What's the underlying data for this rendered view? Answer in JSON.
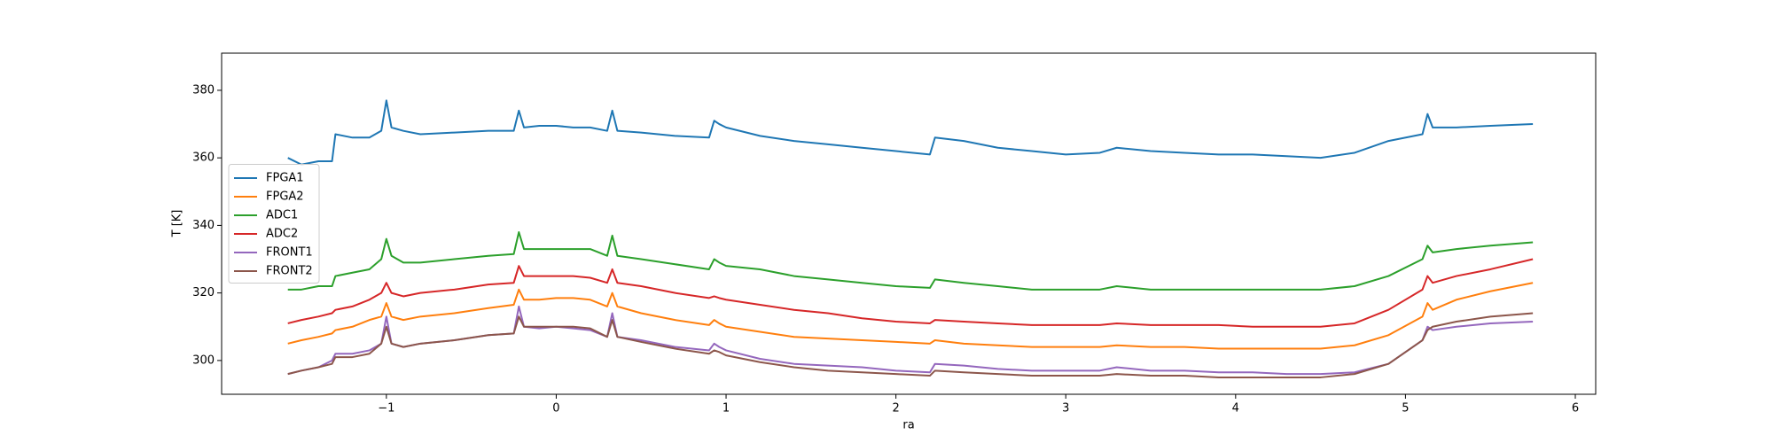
{
  "chart_data": {
    "type": "line",
    "x_label": "ra",
    "y_label": "T [K]",
    "x": [
      -1.58,
      -1.5,
      -1.4,
      -1.32,
      -1.3,
      -1.2,
      -1.1,
      -1.03,
      -1.0,
      -0.97,
      -0.9,
      -0.8,
      -0.6,
      -0.4,
      -0.25,
      -0.22,
      -0.19,
      -0.1,
      0,
      0.1,
      0.2,
      0.3,
      0.33,
      0.36,
      0.5,
      0.7,
      0.9,
      0.93,
      0.96,
      1.0,
      1.2,
      1.4,
      1.6,
      1.8,
      2.0,
      2.2,
      2.23,
      2.4,
      2.6,
      2.8,
      3.0,
      3.2,
      3.3,
      3.5,
      3.7,
      3.9,
      4.1,
      4.3,
      4.5,
      4.7,
      4.9,
      5.1,
      5.13,
      5.16,
      5.3,
      5.5,
      5.75
    ],
    "series": [
      {
        "name": "FPGA1",
        "color": "#1f77b4",
        "values": [
          360,
          358,
          359,
          359,
          367,
          366,
          366,
          368,
          377,
          369,
          368,
          367,
          367.5,
          368,
          368,
          374,
          369,
          369.5,
          369.5,
          369,
          369,
          368,
          374,
          368,
          367.5,
          366.5,
          366,
          371,
          370,
          369,
          366.5,
          365,
          364,
          363,
          362,
          361,
          366,
          365,
          363,
          362,
          361,
          361.5,
          363,
          362,
          361.5,
          361,
          361,
          360.5,
          360,
          361.5,
          365,
          367,
          373,
          369,
          369,
          369.5,
          370
        ]
      },
      {
        "name": "FPGA2",
        "color": "#ff7f0e",
        "values": [
          305,
          306,
          307,
          308,
          309,
          310,
          312,
          313,
          317,
          313,
          312,
          313,
          314,
          315.5,
          316.5,
          321,
          318,
          318,
          318.5,
          318.5,
          318,
          316,
          320,
          316,
          314,
          312,
          310.5,
          312,
          311,
          310,
          308.5,
          307,
          306.5,
          306,
          305.5,
          305,
          306,
          305,
          304.5,
          304,
          304,
          304,
          304.5,
          304,
          304,
          303.5,
          303.5,
          303.5,
          303.5,
          304.5,
          307.5,
          313,
          317,
          315,
          318,
          320.5,
          323
        ]
      },
      {
        "name": "ADC1",
        "color": "#2ca02c",
        "values": [
          321,
          321,
          322,
          322,
          325,
          326,
          327,
          330,
          336,
          331,
          329,
          329,
          330,
          331,
          331.5,
          338,
          333,
          333,
          333,
          333,
          333,
          331,
          337,
          331,
          330,
          328.5,
          327,
          330,
          329,
          328,
          327,
          325,
          324,
          323,
          322,
          321.5,
          324,
          323,
          322,
          321,
          321,
          321,
          322,
          321,
          321,
          321,
          321,
          321,
          321,
          322,
          325,
          330,
          334,
          332,
          333,
          334,
          335
        ]
      },
      {
        "name": "ADC2",
        "color": "#d62728",
        "values": [
          311,
          312,
          313,
          314,
          315,
          316,
          318,
          320,
          323,
          320,
          319,
          320,
          321,
          322.5,
          323,
          328,
          325,
          325,
          325,
          325,
          324.5,
          323,
          327,
          323,
          322,
          320,
          318.5,
          319,
          318.5,
          318,
          316.5,
          315,
          314,
          312.5,
          311.5,
          311,
          312,
          311.5,
          311,
          310.5,
          310.5,
          310.5,
          311,
          310.5,
          310.5,
          310.5,
          310,
          310,
          310,
          311,
          315,
          321,
          325,
          323,
          325,
          327,
          330
        ]
      },
      {
        "name": "FRONT1",
        "color": "#9467bd",
        "values": [
          296,
          297,
          298,
          300,
          302,
          302,
          303,
          305,
          313,
          305,
          304,
          305,
          306,
          307.5,
          308,
          316,
          310,
          309.5,
          310,
          309.5,
          309,
          307,
          314,
          307,
          306,
          304,
          303,
          305,
          304,
          303,
          300.5,
          299,
          298.5,
          298,
          297,
          296.5,
          299,
          298.5,
          297.5,
          297,
          297,
          297,
          298,
          297,
          297,
          296.5,
          296.5,
          296,
          296,
          296.5,
          299,
          306,
          310,
          309,
          310,
          311,
          311.5
        ]
      },
      {
        "name": "FRONT2",
        "color": "#8c564b",
        "values": [
          296,
          297,
          298,
          299,
          301,
          301,
          302,
          305,
          310,
          305,
          304,
          305,
          306,
          307.5,
          308,
          313,
          310,
          310,
          310,
          310,
          309.5,
          307,
          312,
          307,
          305.5,
          303.5,
          302,
          303,
          302.5,
          301.5,
          299.5,
          298,
          297,
          296.5,
          296,
          295.5,
          297,
          296.5,
          296,
          295.5,
          295.5,
          295.5,
          296,
          295.5,
          295.5,
          295,
          295,
          295,
          295,
          296,
          299,
          306,
          309,
          310,
          311.5,
          313,
          314
        ]
      }
    ],
    "xlim": [
      -1.97,
      6.12
    ],
    "xticks": [
      {
        "value": -1,
        "label": "−1"
      },
      0,
      1,
      2,
      3,
      4,
      5,
      6
    ],
    "ylim": [
      290,
      391
    ],
    "yticks": [
      300,
      320,
      340,
      360,
      380
    ],
    "grid": false,
    "legend": "center left"
  }
}
